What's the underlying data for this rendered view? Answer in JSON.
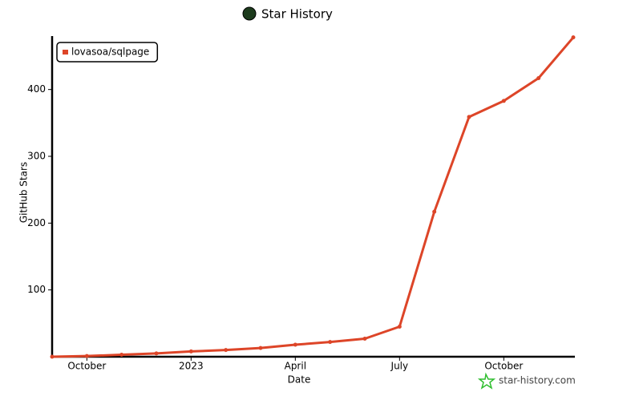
{
  "chart_data": {
    "type": "line",
    "title": "Star History",
    "x_label": "Date",
    "y_label": "GitHub Stars",
    "x": [
      "2022-09",
      "2022-10",
      "2022-11",
      "2022-12",
      "2023-01",
      "2023-02",
      "2023-03",
      "2023-04",
      "2023-05",
      "2023-06",
      "2023-07",
      "2023-08",
      "2023-09",
      "2023-10",
      "2023-11",
      "2023-12"
    ],
    "series": [
      {
        "name": "lovasoa/sqlpage",
        "color": "#dd4528",
        "values": [
          0,
          1,
          3,
          5,
          8,
          10,
          13,
          18,
          22,
          27,
          45,
          217,
          359,
          383,
          417,
          478
        ]
      }
    ],
    "xlim": [
      "2022-09",
      "2023-12"
    ],
    "xticks": [
      {
        "value": "2022-10",
        "label": "October"
      },
      {
        "value": "2023-01",
        "label": "2023"
      },
      {
        "value": "2023-04",
        "label": "April"
      },
      {
        "value": "2023-07",
        "label": "July"
      },
      {
        "value": "2023-10",
        "label": "October"
      }
    ],
    "ylim": [
      0,
      480
    ],
    "yticks": [
      100,
      200,
      300,
      400
    ],
    "legend": "top-left",
    "watermark": "star-history.com"
  }
}
